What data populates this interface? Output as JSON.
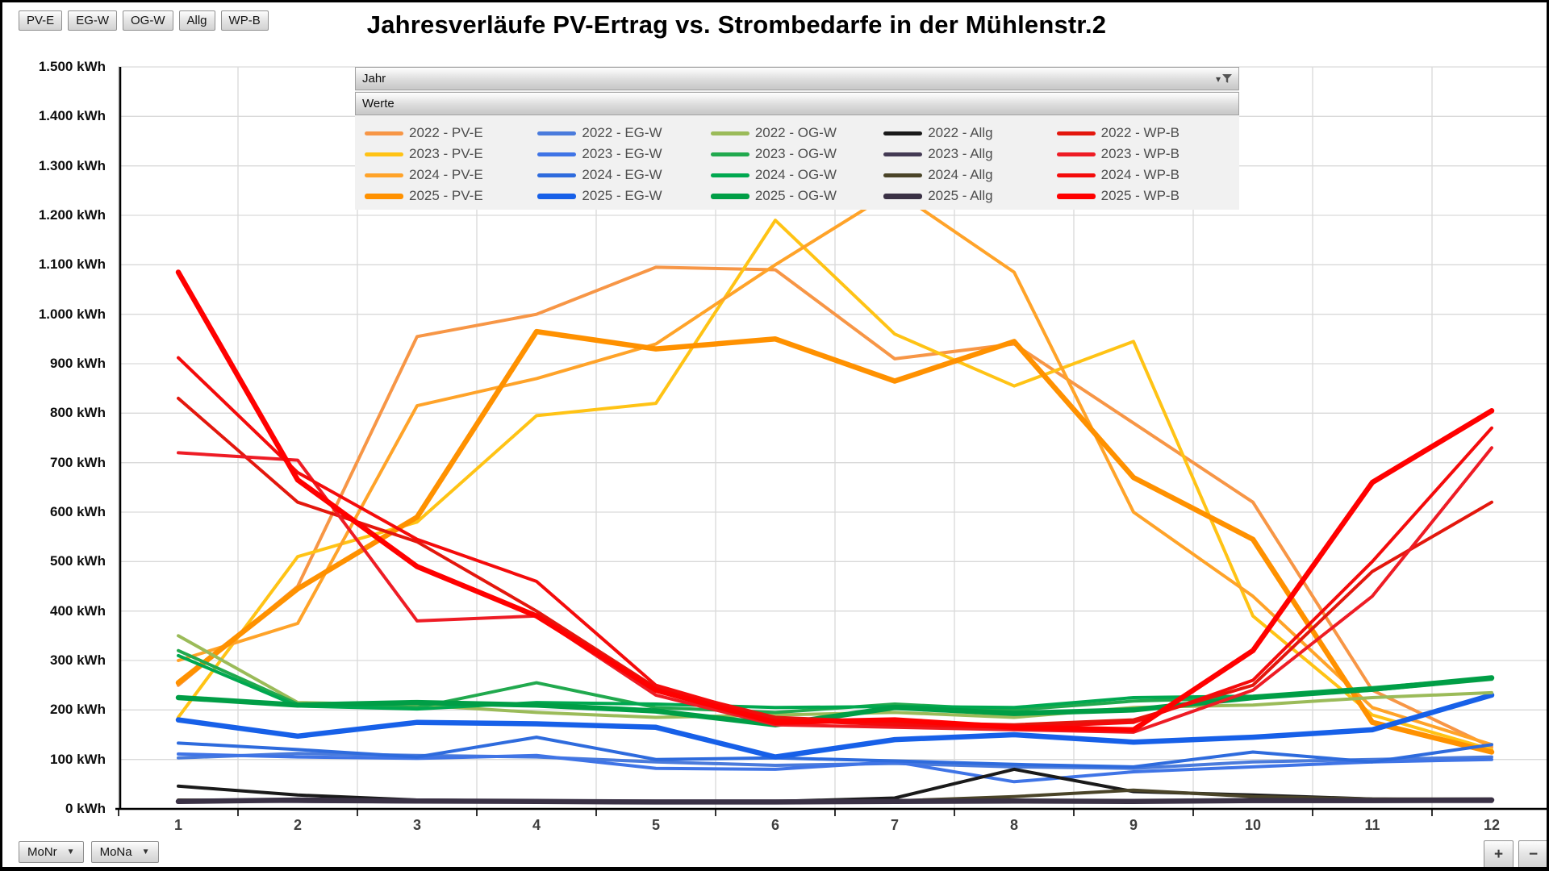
{
  "title": "Jahresverläufe PV-Ertrag vs. Strombedarfe in der Mühlenstr.2",
  "field_buttons": [
    "PV-E",
    "EG-W",
    "OG-W",
    "Allg",
    "WP-B"
  ],
  "legend": {
    "field_row_label": "Jahr",
    "values_row_label": "Werte",
    "filter_caret": "▾"
  },
  "axis_field_buttons": [
    {
      "label": "MoNr",
      "caret": "▼"
    },
    {
      "label": "MoNa",
      "caret": "▼"
    }
  ],
  "zoom_buttons": {
    "plus": "+",
    "minus": "−"
  },
  "chart_data": {
    "type": "line",
    "title": "Jahresverläufe PV-Ertrag vs. Strombedarfe in der Mühlenstr.2",
    "xlabel": "",
    "ylabel": "kWh",
    "ylim": [
      0,
      1500
    ],
    "grid": true,
    "grid_color": "#d9d9d9",
    "axis_color": "#000000",
    "legend_position": "top",
    "x": [
      1,
      2,
      3,
      4,
      5,
      6,
      7,
      8,
      9,
      10,
      11,
      12
    ],
    "x_tick_labels": [
      "1",
      "2",
      "3",
      "4",
      "5",
      "6",
      "7",
      "8",
      "9",
      "10",
      "11",
      "12"
    ],
    "y_ticks": [
      {
        "value": 0,
        "label": "0 kWh"
      },
      {
        "value": 100,
        "label": "100 kWh"
      },
      {
        "value": 200,
        "label": "200 kWh"
      },
      {
        "value": 300,
        "label": "300 kWh"
      },
      {
        "value": 400,
        "label": "400 kWh"
      },
      {
        "value": 500,
        "label": "500 kWh"
      },
      {
        "value": 600,
        "label": "600 kWh"
      },
      {
        "value": 700,
        "label": "700 kWh"
      },
      {
        "value": 800,
        "label": "800 kWh"
      },
      {
        "value": 900,
        "label": "900 kWh"
      },
      {
        "value": 1000,
        "label": "1.000 kWh"
      },
      {
        "value": 1100,
        "label": "1.100 kWh"
      },
      {
        "value": 1200,
        "label": "1.200 kWh"
      },
      {
        "value": 1300,
        "label": "1.300 kWh"
      },
      {
        "value": 1400,
        "label": "1.400 kWh"
      },
      {
        "value": 1500,
        "label": "1.500 kWh"
      }
    ],
    "category_draw_order": [
      "PV-E",
      "EG-W",
      "OG-W",
      "Allg",
      "WP-B"
    ],
    "legend_year_rows": [
      2022,
      2023,
      2024,
      2025
    ],
    "series": [
      {
        "name": "2022 - PV-E",
        "year": 2022,
        "category": "PV-E",
        "color": "#F79646",
        "thick": false,
        "values": [
          250,
          450,
          955,
          1000,
          1095,
          1090,
          910,
          940,
          780,
          620,
          240,
          125
        ]
      },
      {
        "name": "2023 - PV-E",
        "year": 2023,
        "category": "PV-E",
        "color": "#FFC315",
        "thick": false,
        "values": [
          185,
          510,
          580,
          795,
          820,
          1190,
          960,
          855,
          945,
          390,
          190,
          120
        ]
      },
      {
        "name": "2024 - PV-E",
        "year": 2024,
        "category": "PV-E",
        "color": "#FFA329",
        "thick": false,
        "values": [
          300,
          375,
          815,
          870,
          940,
          1100,
          1250,
          1085,
          600,
          430,
          205,
          130
        ]
      },
      {
        "name": "2025 - PV-E",
        "year": 2025,
        "category": "PV-E",
        "color": "#FF9100",
        "thick": true,
        "values": [
          255,
          445,
          590,
          965,
          930,
          950,
          865,
          945,
          670,
          545,
          175,
          115
        ]
      },
      {
        "name": "2022 - EG-W",
        "year": 2022,
        "category": "EG-W",
        "color": "#4A7BDC",
        "thick": false,
        "values": [
          103,
          112,
          108,
          105,
          95,
          88,
          92,
          85,
          82,
          95,
          100,
          105
        ]
      },
      {
        "name": "2023 - EG-W",
        "year": 2023,
        "category": "EG-W",
        "color": "#3F74E6",
        "thick": false,
        "values": [
          111,
          105,
          102,
          108,
          82,
          80,
          95,
          55,
          75,
          85,
          95,
          100
        ]
      },
      {
        "name": "2024 - EG-W",
        "year": 2024,
        "category": "EG-W",
        "color": "#2E6BDD",
        "thick": false,
        "values": [
          133,
          120,
          105,
          145,
          100,
          103,
          97,
          90,
          85,
          115,
          95,
          130
        ]
      },
      {
        "name": "2025 - EG-W",
        "year": 2025,
        "category": "EG-W",
        "color": "#1760E8",
        "thick": true,
        "values": [
          180,
          147,
          175,
          172,
          165,
          105,
          140,
          150,
          135,
          145,
          160,
          230
        ]
      },
      {
        "name": "2022 - OG-W",
        "year": 2022,
        "category": "OG-W",
        "color": "#9BBB59",
        "thick": false,
        "values": [
          350,
          215,
          210,
          195,
          185,
          190,
          195,
          185,
          205,
          210,
          225,
          235
        ]
      },
      {
        "name": "2023 - OG-W",
        "year": 2023,
        "category": "OG-W",
        "color": "#21A94E",
        "thick": false,
        "values": [
          320,
          212,
          205,
          255,
          205,
          195,
          212,
          200,
          218,
          225,
          240,
          262
        ]
      },
      {
        "name": "2024 - OG-W",
        "year": 2024,
        "category": "OG-W",
        "color": "#00A850",
        "thick": false,
        "values": [
          310,
          208,
          202,
          215,
          212,
          205,
          207,
          205,
          225,
          228,
          245,
          265
        ]
      },
      {
        "name": "2025 - OG-W",
        "year": 2025,
        "category": "OG-W",
        "color": "#009E46",
        "thick": true,
        "values": [
          225,
          210,
          215,
          210,
          198,
          170,
          205,
          193,
          200,
          225,
          242,
          265
        ]
      },
      {
        "name": "2022 - Allg",
        "year": 2022,
        "category": "Allg",
        "color": "#1A1A1A",
        "thick": false,
        "values": [
          46,
          28,
          18,
          16,
          15,
          15,
          22,
          80,
          35,
          28,
          20,
          18
        ]
      },
      {
        "name": "2023 - Allg",
        "year": 2023,
        "category": "Allg",
        "color": "#443A54",
        "thick": false,
        "values": [
          16,
          15,
          14,
          14,
          13,
          13,
          14,
          15,
          14,
          15,
          15,
          15
        ]
      },
      {
        "name": "2024 - Allg",
        "year": 2024,
        "category": "Allg",
        "color": "#4A4428",
        "thick": false,
        "values": [
          18,
          17,
          16,
          15,
          15,
          14,
          16,
          25,
          38,
          25,
          20,
          20
        ]
      },
      {
        "name": "2025 - Allg",
        "year": 2025,
        "category": "Allg",
        "color": "#3A3145",
        "thick": true,
        "values": [
          15,
          18,
          16,
          15,
          14,
          14,
          15,
          16,
          15,
          17,
          17,
          18
        ]
      },
      {
        "name": "2022 - WP-B",
        "year": 2022,
        "category": "WP-B",
        "color": "#E3170D",
        "thick": false,
        "values": [
          830,
          620,
          540,
          400,
          245,
          185,
          175,
          170,
          180,
          250,
          480,
          620
        ]
      },
      {
        "name": "2023 - WP-B",
        "year": 2023,
        "category": "WP-B",
        "color": "#EE1C25",
        "thick": false,
        "values": [
          720,
          705,
          380,
          390,
          230,
          170,
          165,
          160,
          155,
          240,
          430,
          730
        ]
      },
      {
        "name": "2024 - WP-B",
        "year": 2024,
        "category": "WP-B",
        "color": "#F40B0B",
        "thick": false,
        "values": [
          912,
          680,
          545,
          460,
          250,
          180,
          170,
          165,
          175,
          260,
          500,
          770
        ]
      },
      {
        "name": "2025 - WP-B",
        "year": 2025,
        "category": "WP-B",
        "color": "#FF0000",
        "thick": true,
        "values": [
          1085,
          665,
          490,
          390,
          240,
          175,
          180,
          165,
          160,
          320,
          660,
          805
        ]
      }
    ]
  }
}
